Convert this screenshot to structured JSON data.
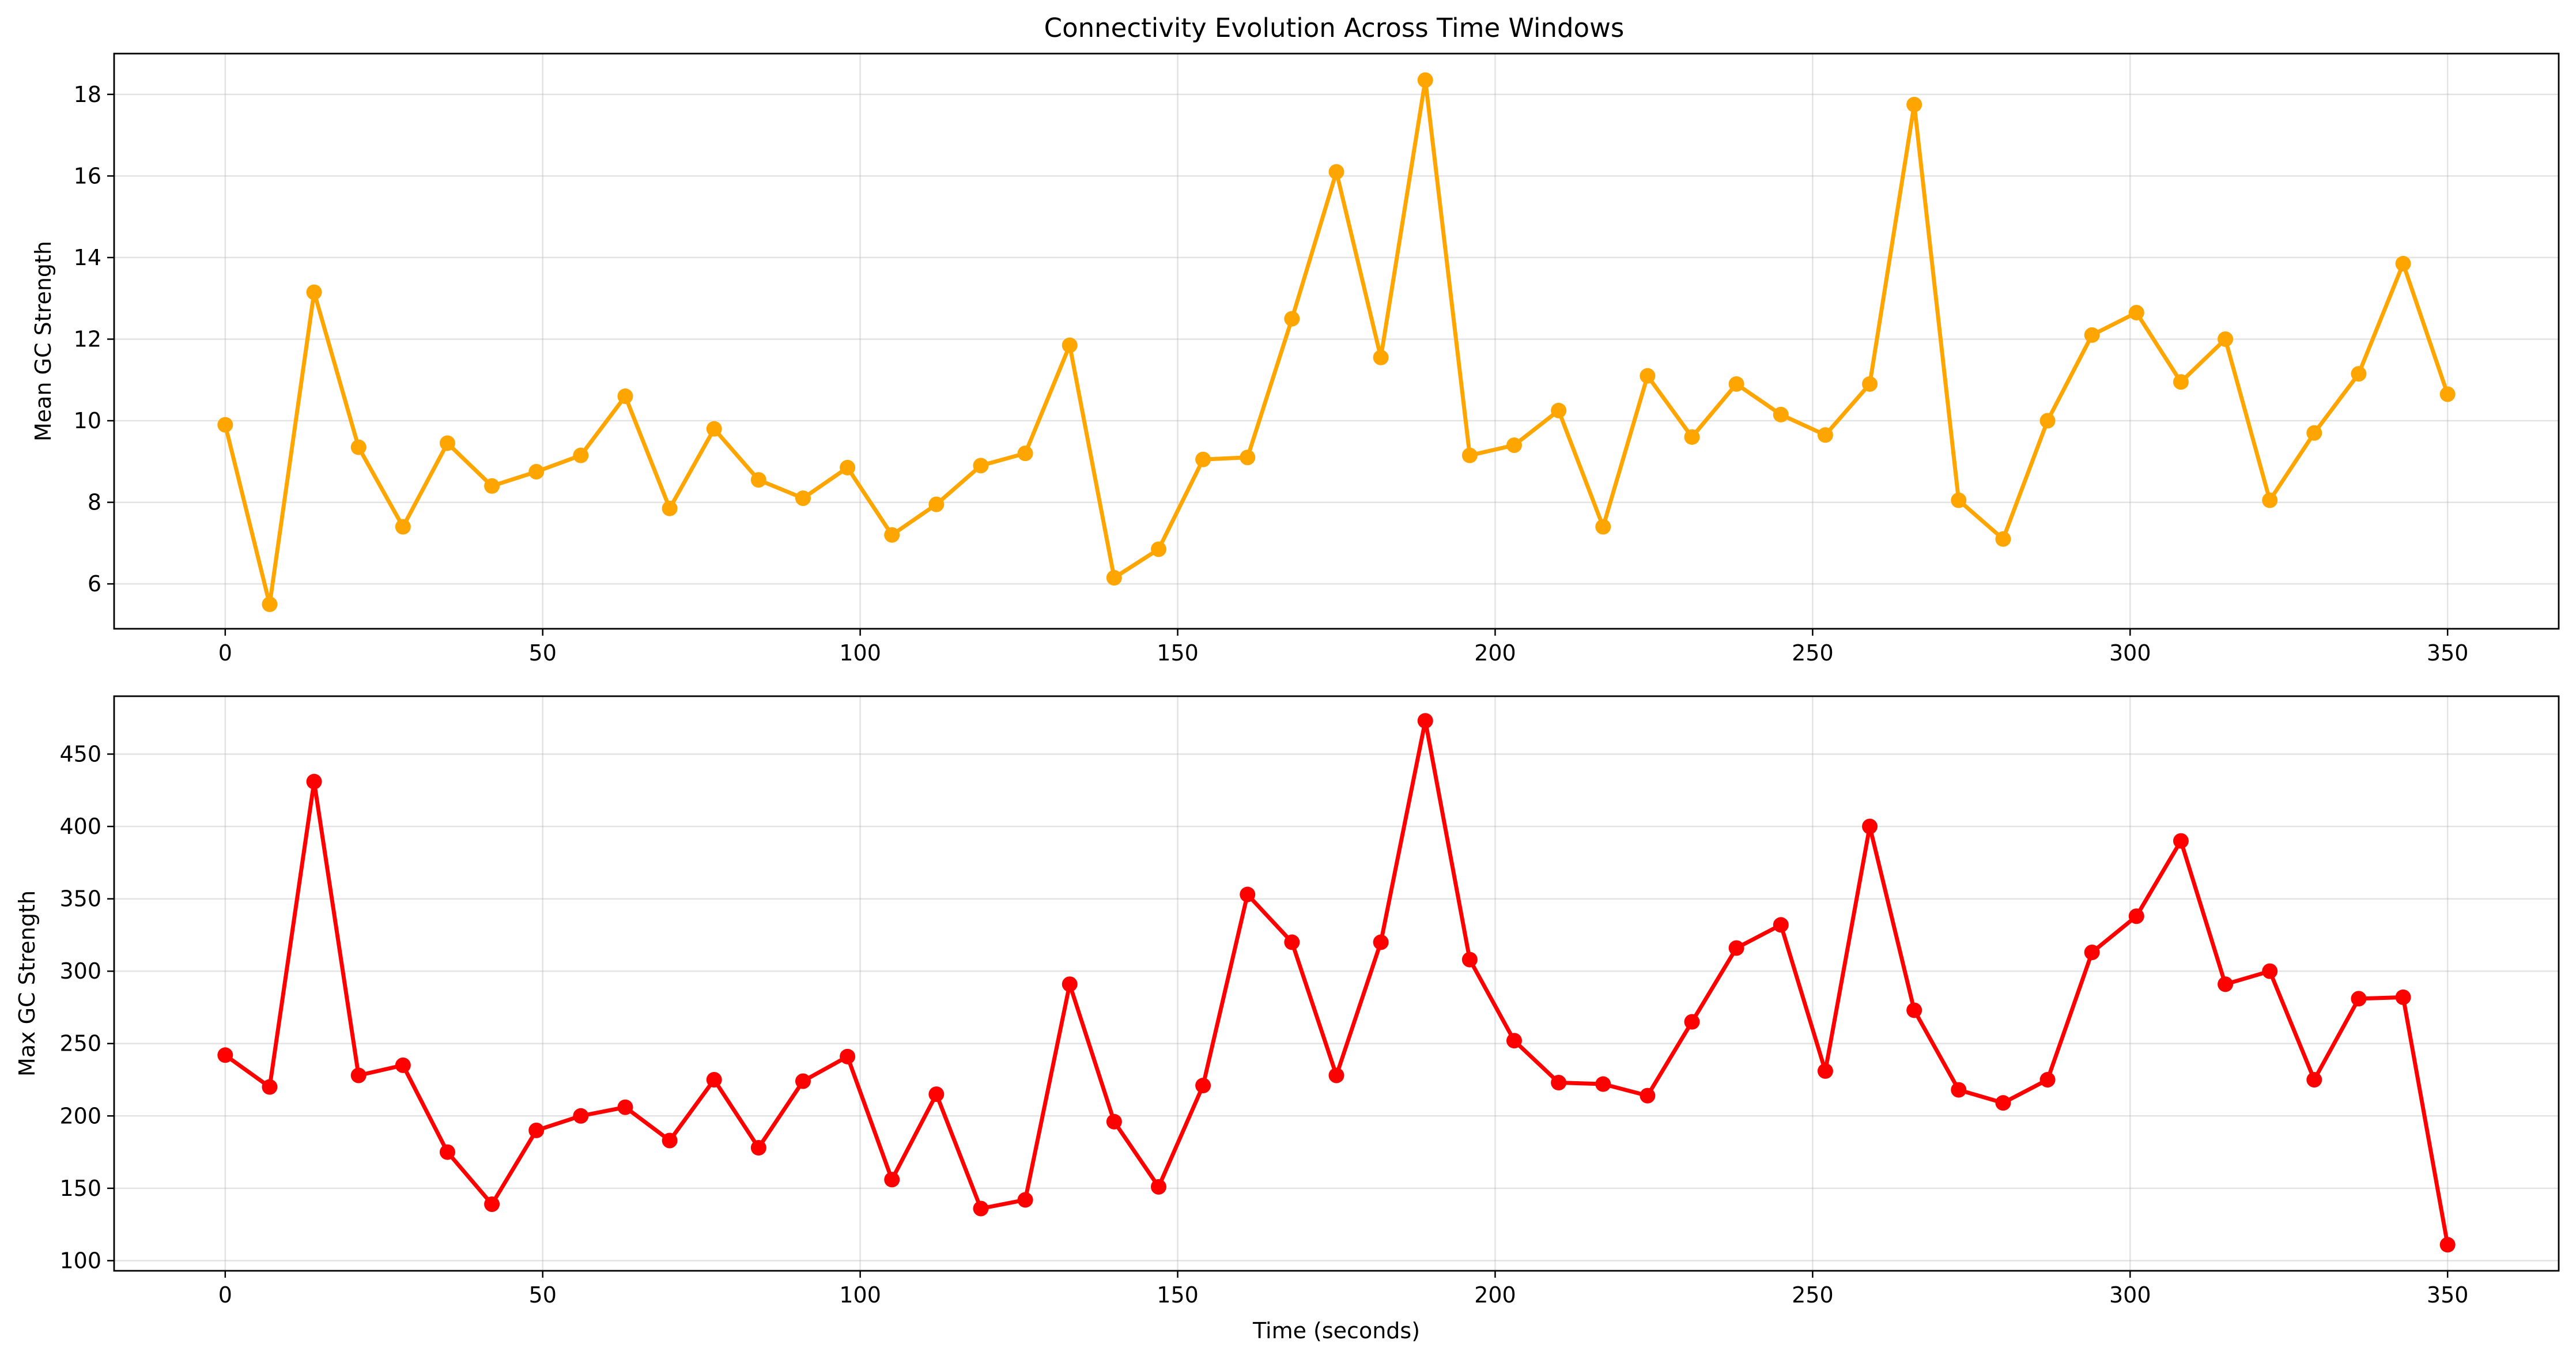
{
  "chart_data": [
    {
      "type": "line",
      "title": "Connectivity Evolution Across Time Windows",
      "xlabel": "",
      "ylabel": "Mean GC Strength",
      "xlim": [
        -17.5,
        367.5
      ],
      "ylim": [
        4.9,
        19.0
      ],
      "xticks": [
        0,
        50,
        100,
        150,
        200,
        250,
        300,
        350
      ],
      "yticks": [
        6,
        8,
        10,
        12,
        14,
        16,
        18
      ],
      "grid": true,
      "series": [
        {
          "color": "#FFA500",
          "x": [
            0,
            7,
            14,
            21,
            28,
            35,
            42,
            49,
            56,
            63,
            70,
            77,
            84,
            91,
            98,
            105,
            112,
            119,
            126,
            133,
            140,
            147,
            154,
            161,
            168,
            175,
            182,
            189,
            196,
            203,
            210,
            217,
            224,
            231,
            238,
            245,
            252,
            259,
            266,
            273,
            280,
            287,
            294,
            301,
            308,
            315,
            322,
            329,
            336,
            343,
            350
          ],
          "values": [
            9.9,
            5.5,
            13.15,
            9.35,
            7.4,
            9.45,
            8.4,
            8.75,
            9.15,
            10.6,
            7.85,
            9.8,
            8.55,
            8.1,
            8.85,
            7.2,
            7.95,
            8.9,
            9.2,
            11.85,
            6.15,
            6.85,
            9.05,
            9.1,
            12.5,
            16.1,
            11.55,
            18.35,
            9.15,
            9.4,
            10.25,
            7.4,
            11.1,
            9.6,
            10.9,
            10.15,
            9.65,
            10.9,
            17.75,
            8.05,
            7.1,
            10.0,
            12.1,
            12.65,
            10.95,
            12.0,
            8.05,
            9.7,
            11.15,
            13.85,
            10.65
          ]
        }
      ]
    },
    {
      "type": "line",
      "title": "",
      "xlabel": "Time (seconds)",
      "ylabel": "Max GC Strength",
      "xlim": [
        -17.5,
        367.5
      ],
      "ylim": [
        93,
        490
      ],
      "xticks": [
        0,
        50,
        100,
        150,
        200,
        250,
        300,
        350
      ],
      "yticks": [
        100,
        150,
        200,
        250,
        300,
        350,
        400,
        450
      ],
      "grid": true,
      "series": [
        {
          "color": "#FF0000",
          "x": [
            0,
            7,
            14,
            21,
            28,
            35,
            42,
            49,
            56,
            63,
            70,
            77,
            84,
            91,
            98,
            105,
            112,
            119,
            126,
            133,
            140,
            147,
            154,
            161,
            168,
            175,
            182,
            189,
            196,
            203,
            210,
            217,
            224,
            231,
            238,
            245,
            252,
            259,
            266,
            273,
            280,
            287,
            294,
            301,
            308,
            315,
            322,
            329,
            336,
            343,
            350
          ],
          "values": [
            242,
            220,
            431,
            228,
            235,
            175,
            139,
            190,
            200,
            206,
            183,
            225,
            178,
            224,
            241,
            156,
            215,
            136,
            142,
            291,
            196,
            151,
            221,
            353,
            320,
            228,
            320,
            473,
            308,
            252,
            223,
            222,
            214,
            265,
            316,
            332,
            231,
            400,
            273,
            218,
            209,
            225,
            313,
            338,
            390,
            291,
            300,
            225,
            281,
            282,
            111
          ]
        }
      ]
    }
  ]
}
